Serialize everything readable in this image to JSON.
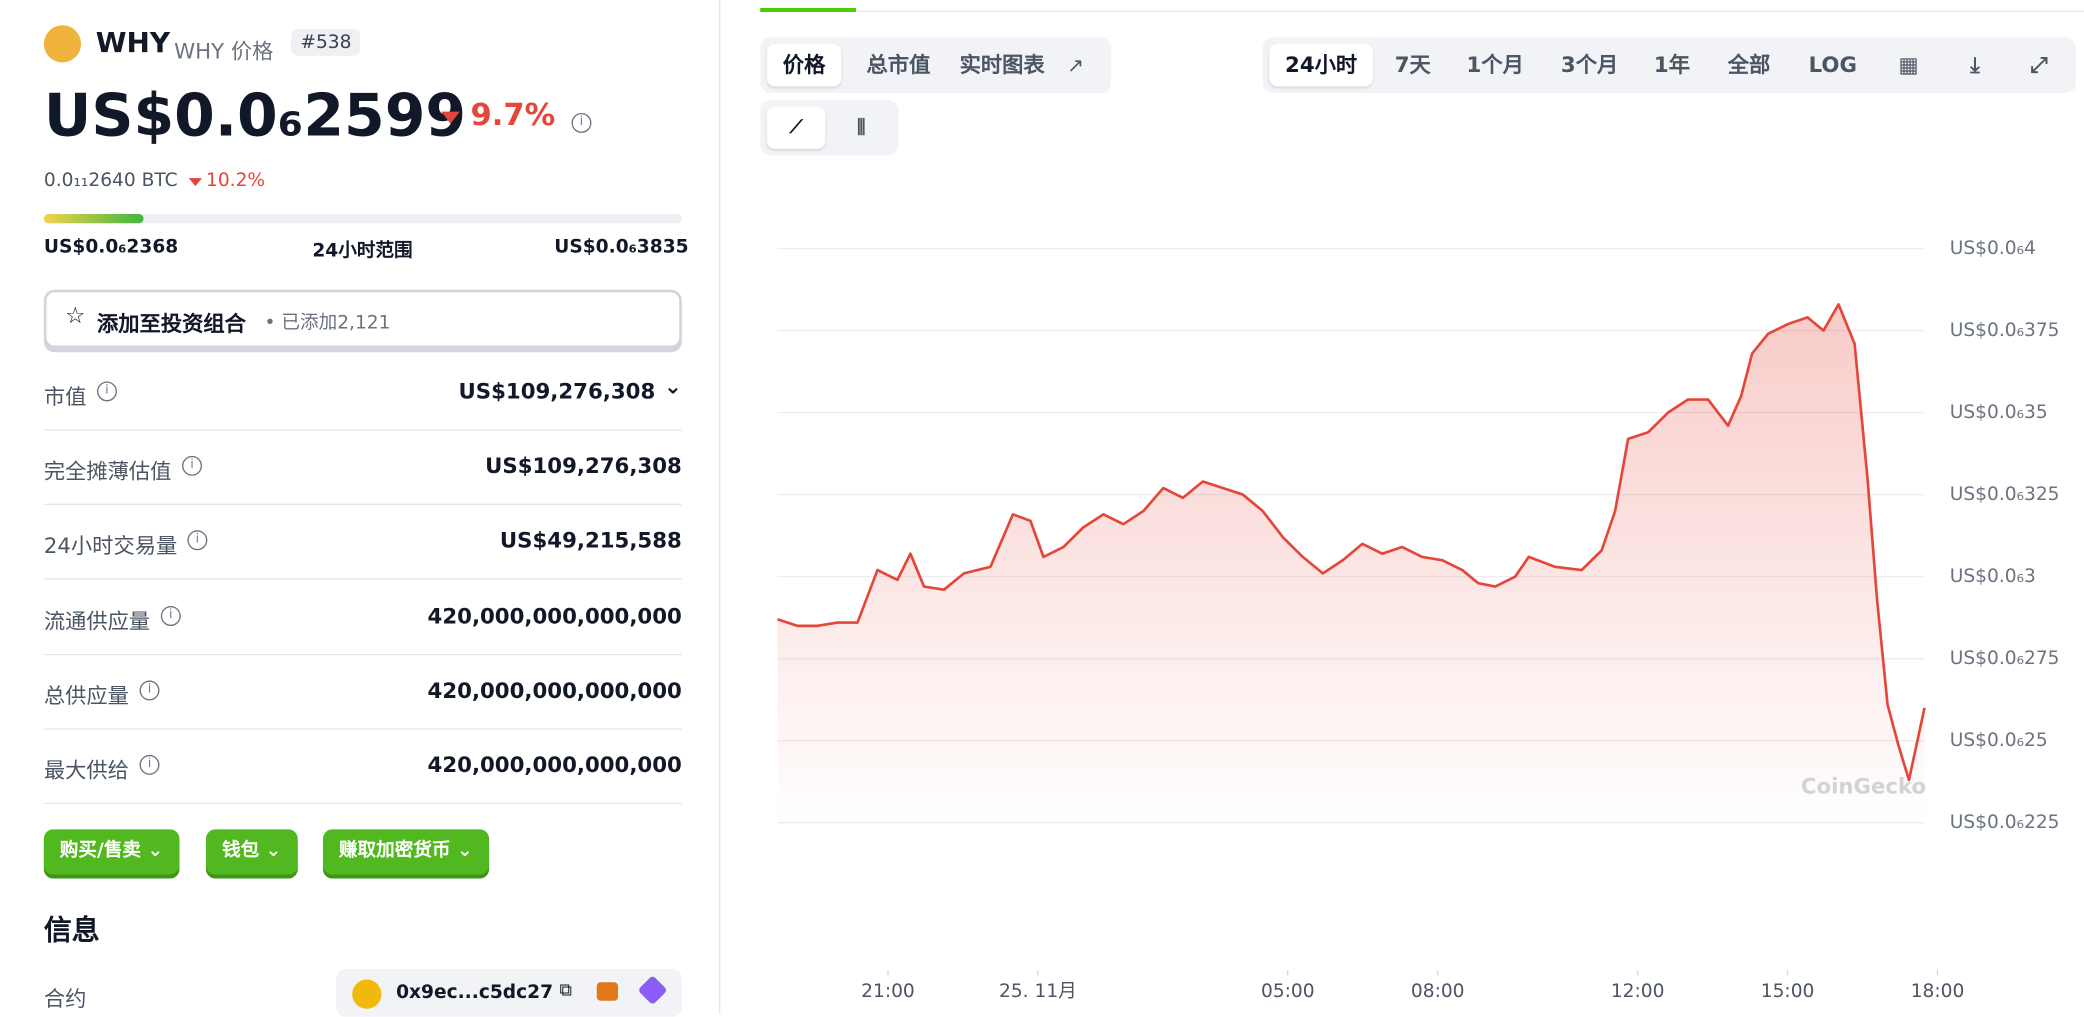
{
  "header": {
    "name": "WHY",
    "subtitle": "WHY 价格",
    "rank": "#538"
  },
  "price": {
    "main": "US$0.0₆2599",
    "change": "9.7%",
    "btc": "0.0₁₁2640 BTC",
    "btc_change": "10.2%"
  },
  "range": {
    "low": "US$0.0₆2368",
    "label": "24小时范围",
    "high": "US$0.0₆3835"
  },
  "portfolio": {
    "button": "添加至投资组合",
    "added": "已添加2,121"
  },
  "stats": [
    {
      "label": "市值",
      "value": "US$109,276,308"
    },
    {
      "label": "完全摊薄估值",
      "value": "US$109,276,308"
    },
    {
      "label": "24小时交易量",
      "value": "US$49,215,588"
    },
    {
      "label": "流通供应量",
      "value": "420,000,000,000,000"
    },
    {
      "label": "总供应量",
      "value": "420,000,000,000,000"
    },
    {
      "label": "最大供给",
      "value": "420,000,000,000,000"
    }
  ],
  "actions": [
    "购买/售卖",
    "钱包",
    "赚取加密货币"
  ],
  "info": {
    "title": "信息",
    "contract_label": "合约",
    "contract": "0x9ec...c5dc27"
  },
  "tabs": [
    "价格",
    "总市值",
    "实时图表"
  ],
  "ranges": [
    "24小时",
    "7天",
    "1个月",
    "3个月",
    "1年",
    "全部",
    "LOG"
  ],
  "chart_data": {
    "type": "line",
    "watermark": "CoinGecko",
    "color": "#e5463a",
    "x": [
      18.79,
      19.19,
      19.59,
      19.99,
      20.39,
      20.79,
      21.19,
      21.45,
      21.72,
      22.12,
      22.52,
      23.05,
      23.5,
      23.85,
      24.11,
      24.51,
      24.91,
      25.31,
      25.71,
      26.11,
      26.51,
      26.9,
      27.3,
      27.7,
      28.1,
      28.5,
      28.9,
      29.3,
      29.7,
      30.1,
      30.49,
      30.89,
      31.29,
      31.69,
      32.09,
      32.49,
      32.81,
      33.15,
      33.55,
      33.82,
      34.35,
      34.88,
      35.28,
      35.55,
      35.81,
      36.21,
      36.61,
      37.01,
      37.41,
      37.81,
      38.07,
      38.29,
      38.61,
      39.01,
      39.4,
      39.72,
      40.02,
      40.34,
      40.6,
      40.79,
      41,
      41.21,
      41.43,
      41.74
    ],
    "values": [
      2.87e-07,
      2.85e-07,
      2.85e-07,
      2.86e-07,
      2.86e-07,
      3.02e-07,
      2.99e-07,
      3.07e-07,
      2.97e-07,
      2.96e-07,
      3.01e-07,
      3.03e-07,
      3.19e-07,
      3.17e-07,
      3.06e-07,
      3.09e-07,
      3.15e-07,
      3.19e-07,
      3.16e-07,
      3.2e-07,
      3.27e-07,
      3.24e-07,
      3.29e-07,
      3.27e-07,
      3.25e-07,
      3.2e-07,
      3.12e-07,
      3.06e-07,
      3.01e-07,
      3.05e-07,
      3.1e-07,
      3.07e-07,
      3.09e-07,
      3.06e-07,
      3.05e-07,
      3.02e-07,
      2.98e-07,
      2.97e-07,
      3e-07,
      3.06e-07,
      3.03e-07,
      3.02e-07,
      3.08e-07,
      3.2e-07,
      3.42e-07,
      3.44e-07,
      3.5e-07,
      3.54e-07,
      3.54e-07,
      3.46e-07,
      3.55e-07,
      3.68e-07,
      3.74e-07,
      3.77e-07,
      3.79e-07,
      3.75e-07,
      3.83e-07,
      3.71e-07,
      3.3e-07,
      2.93e-07,
      2.61e-07,
      2.49e-07,
      2.38e-07,
      2.6e-07
    ],
    "xlim": [
      18.79,
      41.74
    ],
    "xticks": [
      {
        "value": 21,
        "label": "21:00"
      },
      {
        "value": 24,
        "label": "25. 11月"
      },
      {
        "value": 29,
        "label": "05:00"
      },
      {
        "value": 32,
        "label": "08:00"
      },
      {
        "value": 36,
        "label": "12:00"
      },
      {
        "value": 39,
        "label": "15:00"
      },
      {
        "value": 42,
        "label": "18:00"
      }
    ],
    "ylim": [
      2.25e-07,
      4e-07
    ],
    "yticks": [
      {
        "value": 4e-07,
        "label": "US$0.0₆4"
      },
      {
        "value": 3.75e-07,
        "label": "US$0.0₆375"
      },
      {
        "value": 3.5e-07,
        "label": "US$0.0₆35"
      },
      {
        "value": 3.25e-07,
        "label": "US$0.0₆325"
      },
      {
        "value": 3e-07,
        "label": "US$0.0₆3"
      },
      {
        "value": 2.75e-07,
        "label": "US$0.0₆275"
      },
      {
        "value": 2.5e-07,
        "label": "US$0.0₆25"
      },
      {
        "value": 2.25e-07,
        "label": "US$0.0₆225"
      }
    ],
    "grid": true
  }
}
